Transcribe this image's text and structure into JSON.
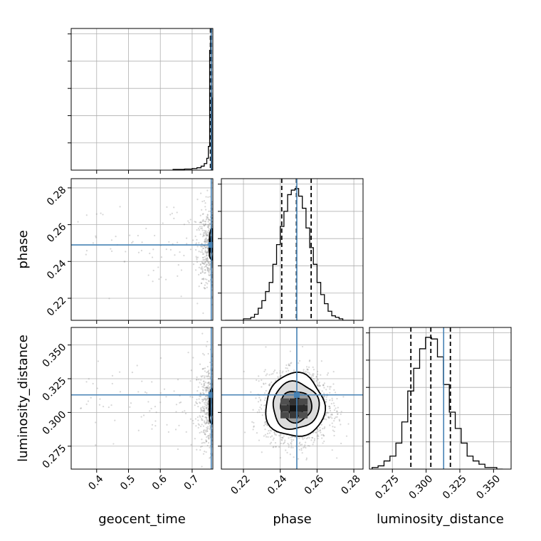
{
  "chart_data": {
    "type": "corner",
    "parameters": [
      "geocent_time",
      "phase",
      "luminosity_distance"
    ],
    "colors": {
      "truth": "#4682b4",
      "hist": "#000000",
      "grid": "#b0b0b0",
      "points": "#8c8c8c"
    },
    "ranges": {
      "geocent_time": [
        0.32,
        0.765
      ],
      "phase": [
        0.208,
        0.285
      ],
      "luminosity_distance": [
        0.258,
        0.363
      ]
    },
    "ticks": {
      "geocent_time": {
        "values": [
          0.4,
          0.5,
          0.6,
          0.7
        ],
        "labels": [
          "0.4",
          "0.5",
          "0.6",
          "0.7"
        ]
      },
      "phase": {
        "values": [
          0.22,
          0.24,
          0.26,
          0.28
        ],
        "labels": [
          "0.22",
          "0.24",
          "0.26",
          "0.28"
        ]
      },
      "luminosity_distance": {
        "values": [
          0.275,
          0.3,
          0.325,
          0.35
        ],
        "labels": [
          "0.275",
          "0.300",
          "0.325",
          "0.350"
        ]
      }
    },
    "truths": {
      "geocent_time": 0.76,
      "phase": 0.249,
      "luminosity_distance": 0.313
    },
    "quantiles": {
      "geocent_time": [
        0.7575,
        0.7595,
        0.7608
      ],
      "phase": [
        0.2408,
        0.2488,
        0.2568
      ],
      "luminosity_distance": [
        0.2887,
        0.3035,
        0.318
      ]
    },
    "histograms": {
      "geocent_time": {
        "edges": [
          0.64,
          0.676,
          0.7,
          0.715,
          0.728,
          0.738,
          0.746,
          0.751,
          0.755,
          0.758,
          0.7605,
          0.762
        ],
        "counts": [
          0.005,
          0.008,
          0.012,
          0.018,
          0.03,
          0.05,
          0.09,
          0.18,
          0.91,
          1.0,
          0.55
        ]
      },
      "phase": {
        "edges": [
          0.21,
          0.212,
          0.214,
          0.216,
          0.218,
          0.22,
          0.222,
          0.224,
          0.226,
          0.228,
          0.23,
          0.232,
          0.234,
          0.236,
          0.238,
          0.24,
          0.242,
          0.244,
          0.246,
          0.248,
          0.25,
          0.252,
          0.254,
          0.256,
          0.258,
          0.26,
          0.262,
          0.264,
          0.266,
          0.268,
          0.27,
          0.272,
          0.274,
          0.276,
          0.278,
          0.28
        ],
        "counts": [
          0.0,
          0.0,
          0.0,
          0.0,
          0.0,
          0.01,
          0.01,
          0.02,
          0.04,
          0.08,
          0.13,
          0.19,
          0.25,
          0.37,
          0.5,
          0.62,
          0.72,
          0.83,
          0.86,
          0.87,
          0.82,
          0.74,
          0.61,
          0.48,
          0.37,
          0.25,
          0.17,
          0.11,
          0.06,
          0.03,
          0.02,
          0.01,
          0.0,
          0.0,
          0.0
        ]
      },
      "luminosity_distance": {
        "edges": [
          0.26,
          0.2644,
          0.2688,
          0.2732,
          0.2776,
          0.282,
          0.2864,
          0.2908,
          0.2952,
          0.2996,
          0.304,
          0.3084,
          0.3128,
          0.3172,
          0.3216,
          0.326,
          0.3304,
          0.3348,
          0.3392,
          0.3436,
          0.348,
          0.3524,
          0.3568
        ],
        "counts": [
          0.01,
          0.02,
          0.05,
          0.08,
          0.16,
          0.29,
          0.48,
          0.62,
          0.74,
          0.81,
          0.8,
          0.69,
          0.52,
          0.35,
          0.25,
          0.16,
          0.08,
          0.05,
          0.03,
          0.01,
          0.01,
          0.0
        ]
      }
    },
    "panels": {
      "phase_vs_geocent_time": {
        "x": "geocent_time",
        "y": "phase",
        "scatter": {
          "n": 600,
          "x_mean": 0.755,
          "x_sd": 0.018,
          "x_tail_min": 0.33,
          "y_mean": 0.249,
          "y_sd": 0.011
        },
        "contours": [
          {
            "cx": 0.7605,
            "cy": 0.249,
            "rx": 0.0035,
            "ry": 0.0045
          },
          {
            "cx": 0.7602,
            "cy": 0.249,
            "rx": 0.0065,
            "ry": 0.0085
          }
        ]
      },
      "luminosity_distance_vs_geocent_time": {
        "x": "geocent_time",
        "y": "luminosity_distance",
        "scatter": {
          "n": 600,
          "x_mean": 0.755,
          "x_sd": 0.018,
          "x_tail_min": 0.33,
          "y_mean": 0.305,
          "y_sd": 0.016
        },
        "contours": [
          {
            "cx": 0.7605,
            "cy": 0.304,
            "rx": 0.0035,
            "ry": 0.007
          },
          {
            "cx": 0.7602,
            "cy": 0.304,
            "rx": 0.0065,
            "ry": 0.013
          }
        ]
      },
      "luminosity_distance_vs_phase": {
        "x": "phase",
        "y": "luminosity_distance",
        "scatter": {
          "n": 2200,
          "x_mean": 0.249,
          "x_sd": 0.0085,
          "y_mean": 0.304,
          "y_sd": 0.0125
        },
        "density_cells": [
          {
            "x": 0.2475,
            "y": 0.303,
            "d": 1.0
          },
          {
            "x": 0.2525,
            "y": 0.303,
            "d": 0.8
          },
          {
            "x": 0.2475,
            "y": 0.308,
            "d": 0.75
          },
          {
            "x": 0.2425,
            "y": 0.303,
            "d": 0.7
          },
          {
            "x": 0.2475,
            "y": 0.298,
            "d": 0.7
          },
          {
            "x": 0.2525,
            "y": 0.308,
            "d": 0.55
          },
          {
            "x": 0.2425,
            "y": 0.298,
            "d": 0.55
          },
          {
            "x": 0.2525,
            "y": 0.298,
            "d": 0.5
          },
          {
            "x": 0.2425,
            "y": 0.308,
            "d": 0.5
          },
          {
            "x": 0.2475,
            "y": 0.313,
            "d": 0.4
          },
          {
            "x": 0.2475,
            "y": 0.293,
            "d": 0.35
          },
          {
            "x": 0.2375,
            "y": 0.303,
            "d": 0.3
          },
          {
            "x": 0.2575,
            "y": 0.303,
            "d": 0.3
          }
        ],
        "contours": [
          {
            "cx": 0.2485,
            "cy": 0.304,
            "rx": 0.0045,
            "ry": 0.0065,
            "fill": "#4d4d4d"
          },
          {
            "cx": 0.2485,
            "cy": 0.3045,
            "rx": 0.0085,
            "ry": 0.0115,
            "fill": "#9a9a9a"
          },
          {
            "cx": 0.2483,
            "cy": 0.305,
            "rx": 0.0125,
            "ry": 0.0175,
            "fill": "#dcdcdc"
          },
          {
            "cx": 0.248,
            "cy": 0.305,
            "rx": 0.016,
            "ry": 0.0235,
            "fill": "#ffffff"
          }
        ]
      }
    }
  }
}
